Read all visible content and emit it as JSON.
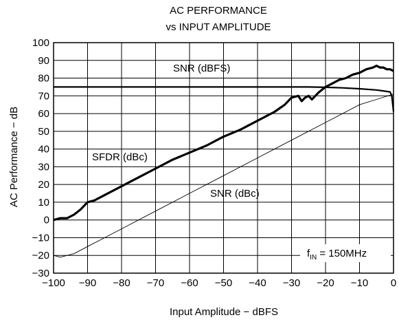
{
  "chart_data": {
    "type": "line",
    "title_line1": "AC PERFORMANCE",
    "title_line2": "vs INPUT AMPLITUDE",
    "xlabel": "Input Amplitude − dBFS",
    "ylabel": "AC Performance − dB",
    "xlim": [
      -100,
      0
    ],
    "ylim": [
      -30,
      100
    ],
    "xticks": [
      -100,
      -90,
      -80,
      -70,
      -60,
      -50,
      -40,
      -30,
      -20,
      -10,
      0
    ],
    "yticks": [
      -30,
      -20,
      -10,
      0,
      10,
      20,
      30,
      40,
      50,
      60,
      70,
      80,
      90,
      100
    ],
    "xtick_labels": [
      "−100",
      "−90",
      "−80",
      "−70",
      "−60",
      "−50",
      "−40",
      "−30",
      "−20",
      "−10",
      "0"
    ],
    "ytick_labels": [
      "−30",
      "−20",
      "−10",
      "0",
      "10",
      "20",
      "30",
      "40",
      "50",
      "60",
      "70",
      "80",
      "90",
      "100"
    ],
    "grid": true,
    "annotation": {
      "main": "f",
      "sub": "IN",
      "rest": " = 150MHz"
    },
    "series": [
      {
        "name": "SNR (dBFS)",
        "x": [
          -100,
          -90,
          -80,
          -70,
          -60,
          -50,
          -40,
          -30,
          -25,
          -20,
          -15,
          -10,
          -5,
          -3,
          -1,
          -0.5,
          0
        ],
        "values": [
          75,
          75,
          75,
          75,
          75,
          75,
          75,
          75,
          75,
          74.8,
          74.5,
          74,
          73.3,
          72.8,
          72.2,
          70,
          61
        ]
      },
      {
        "name": "SFDR (dBc)",
        "x": [
          -100,
          -98,
          -96,
          -94,
          -92,
          -90,
          -88,
          -85,
          -80,
          -75,
          -70,
          -65,
          -60,
          -55,
          -50,
          -45,
          -40,
          -35,
          -32,
          -30,
          -28,
          -27,
          -26,
          -25,
          -24,
          -23,
          -22,
          -20,
          -18,
          -16,
          -14,
          -12,
          -10,
          -8,
          -6,
          -5,
          -4,
          -3,
          -2,
          -1,
          0
        ],
        "values": [
          0,
          1,
          1,
          3,
          6,
          10,
          11,
          14,
          19,
          24,
          29,
          34,
          38,
          42,
          47,
          51,
          56,
          61,
          65,
          69,
          70,
          67,
          69,
          70,
          68,
          70,
          72,
          75,
          77,
          79,
          80,
          82,
          83,
          85,
          86,
          87,
          86,
          86,
          85,
          85,
          84
        ]
      },
      {
        "name": "SNR (dBc)",
        "x": [
          -100,
          -98,
          -96,
          -94,
          -90,
          -85,
          -80,
          -70,
          -60,
          -50,
          -40,
          -30,
          -20,
          -15,
          -10,
          -5,
          0
        ],
        "values": [
          -20,
          -21,
          -20,
          -19,
          -15,
          -10,
          -5,
          5,
          15,
          25,
          35,
          45,
          55,
          60,
          65,
          68,
          71
        ]
      }
    ],
    "series_labels": {
      "snr_dbfs": "SNR (dBFS)",
      "sfdr_dbc": "SFDR (dBc)",
      "snr_dbc": "SNR (dBc)"
    }
  }
}
